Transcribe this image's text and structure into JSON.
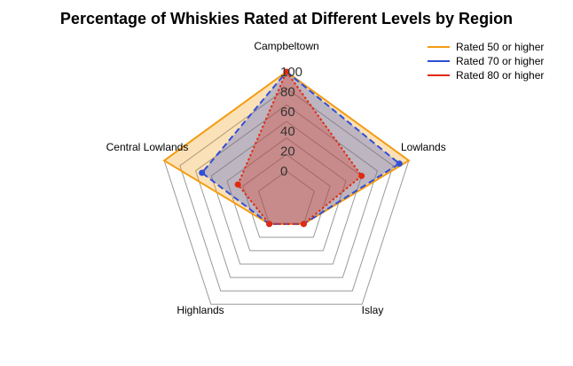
{
  "chart_data": {
    "type": "radar",
    "title": "Percentage of Whiskies Rated at Different Levels by Region",
    "categories": [
      "Campbeltown",
      "Lowlands",
      "Islay",
      "Highlands",
      "Central Lowlands"
    ],
    "rlim": [
      0,
      100
    ],
    "r_ticks": [
      "0",
      "20",
      "40",
      "60",
      "80",
      "100"
    ],
    "grid": true,
    "legend_position": "top-right",
    "series": [
      {
        "name": "Rated 50 or higher",
        "values": [
          100,
          100,
          0,
          0,
          100
        ],
        "color": "#f39c12",
        "line_style": "solid",
        "markers": false
      },
      {
        "name": "Rated 70 or higher",
        "values": [
          100,
          90,
          0,
          0,
          60
        ],
        "color": "#2f4fd8",
        "line_style": "dashed",
        "markers": true
      },
      {
        "name": "Rated 80 or higher",
        "values": [
          100,
          50,
          0,
          0,
          22
        ],
        "color": "#e02a10",
        "line_style": "dotted",
        "markers": true
      }
    ]
  }
}
